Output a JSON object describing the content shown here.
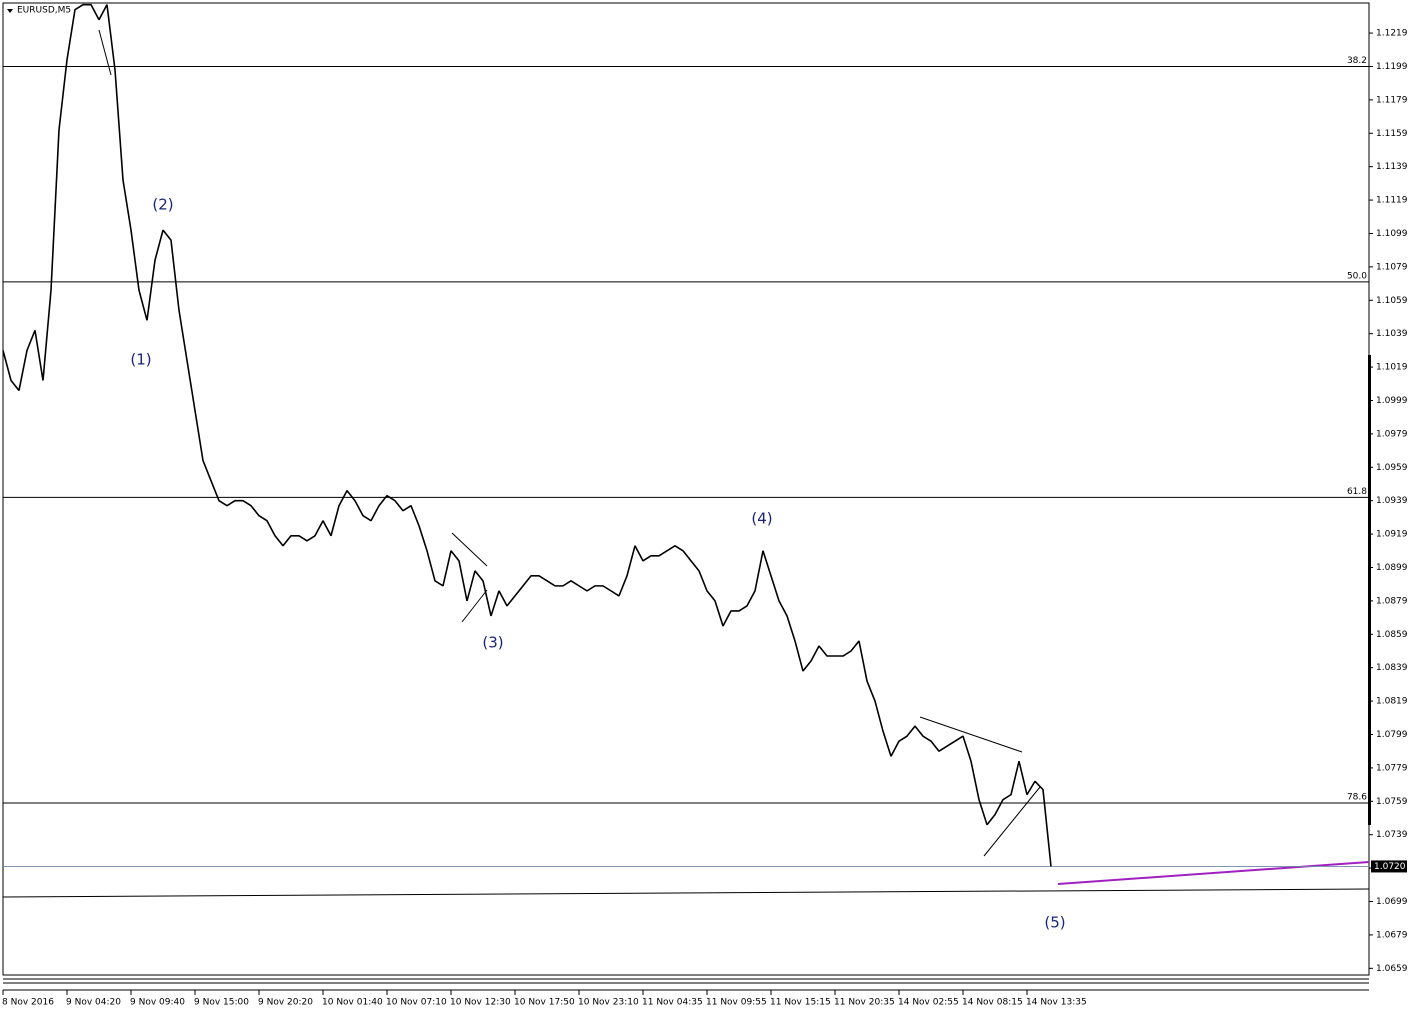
{
  "chart_data": {
    "type": "line",
    "title": "EURUSD,M5",
    "categories": [
      "8 Nov 2016",
      null,
      null,
      null,
      null,
      null,
      null,
      null,
      "9 Nov 04:20",
      null,
      null,
      null,
      null,
      null,
      null,
      null,
      "9 Nov 09:40",
      null,
      null,
      null,
      null,
      null,
      null,
      null,
      "9 Nov 15:00",
      null,
      null,
      null,
      null,
      null,
      null,
      null,
      "9 Nov 20:20",
      null,
      null,
      null,
      null,
      null,
      null,
      null,
      "10 Nov 01:40",
      null,
      null,
      null,
      null,
      null,
      null,
      null,
      "10 Nov 07:10",
      null,
      null,
      null,
      null,
      null,
      null,
      null,
      "10 Nov 12:30",
      null,
      null,
      null,
      null,
      null,
      null,
      null,
      "10 Nov 17:50",
      null,
      null,
      null,
      null,
      null,
      null,
      null,
      "10 Nov 23:10",
      null,
      null,
      null,
      null,
      null,
      null,
      null,
      "11 Nov 04:35",
      null,
      null,
      null,
      null,
      null,
      null,
      null,
      "11 Nov 09:55",
      null,
      null,
      null,
      null,
      null,
      null,
      null,
      "11 Nov 15:15",
      null,
      null,
      null,
      null,
      null,
      null,
      null,
      "11 Nov 20:35",
      null,
      null,
      null,
      null,
      null,
      null,
      null,
      "14 Nov 02:55",
      null,
      null,
      null,
      null,
      null,
      null,
      null,
      "14 Nov 08:15",
      null,
      null,
      null,
      null,
      null,
      null,
      null,
      "14 Nov 13:35",
      null,
      null,
      null
    ],
    "series": [
      {
        "color": "#000000",
        "values": [
          1.1029,
          1.1011,
          1.1005,
          1.1029,
          1.1041,
          1.1011,
          1.1065,
          1.1161,
          1.1203,
          1.1233,
          1.1236,
          1.1236,
          1.1227,
          1.1236,
          1.1197,
          1.1131,
          1.1101,
          1.1065,
          1.1047,
          1.1083,
          1.1101,
          1.1095,
          1.1053,
          1.1023,
          1.0993,
          1.0963,
          1.0951,
          1.0939,
          1.0936,
          1.0939,
          1.0939,
          1.0936,
          1.093,
          1.0927,
          1.0918,
          1.0912,
          1.0918,
          1.0918,
          1.0915,
          1.0918,
          1.0927,
          1.0918,
          1.0936,
          1.0945,
          1.0939,
          1.093,
          1.0927,
          1.0936,
          1.0942,
          1.0939,
          1.0933,
          1.0936,
          1.0924,
          1.0909,
          1.0891,
          1.0888,
          1.0909,
          1.0903,
          1.0879,
          1.0897,
          1.0891,
          1.087,
          1.0885,
          1.0876,
          1.0882,
          1.0888,
          1.0894,
          1.0894,
          1.0891,
          1.0888,
          1.0888,
          1.0891,
          1.0888,
          1.0885,
          1.0888,
          1.0888,
          1.0885,
          1.0882,
          1.0894,
          1.0912,
          1.0903,
          1.0906,
          1.0906,
          1.0909,
          1.0912,
          1.0909,
          1.0903,
          1.0897,
          1.0885,
          1.0879,
          1.0864,
          1.0873,
          1.0873,
          1.0876,
          1.0885,
          1.0909,
          1.0894,
          1.0879,
          1.087,
          1.0855,
          1.0837,
          1.0843,
          1.0852,
          1.0846,
          1.0846,
          1.0846,
          1.0849,
          1.0855,
          1.0831,
          1.0819,
          1.0801,
          1.0786,
          1.0795,
          1.0798,
          1.0804,
          1.0798,
          1.0795,
          1.0789,
          1.0792,
          1.0795,
          1.0798,
          1.0783,
          1.076,
          1.0745,
          1.0751,
          1.076,
          1.0763,
          1.0783,
          1.0763,
          1.0771,
          1.0766,
          1.072
        ]
      }
    ],
    "ylim": [
      1.0655,
      1.1237
    ],
    "yticks": [
      1.0659,
      1.0679,
      1.0699,
      1.0719,
      1.0739,
      1.0759,
      1.0779,
      1.0799,
      1.0819,
      1.0839,
      1.0859,
      1.0879,
      1.0899,
      1.0919,
      1.0939,
      1.0959,
      1.0979,
      1.0999,
      1.1019,
      1.1039,
      1.1059,
      1.1079,
      1.1099,
      1.1119,
      1.1139,
      1.1159,
      1.1179,
      1.1199,
      1.1219
    ],
    "levels": [
      {
        "value": 1.1199,
        "label": "38.2"
      },
      {
        "value": 1.107,
        "label": "50.0"
      },
      {
        "value": 1.0941,
        "label": "61.8"
      },
      {
        "value": 1.0758,
        "label": "78.6"
      }
    ],
    "current_price": {
      "value": 1.072,
      "label": "1.0720"
    },
    "annotations": [
      "(1)",
      "(2)",
      "(3)",
      "(4)",
      "(5)"
    ]
  }
}
